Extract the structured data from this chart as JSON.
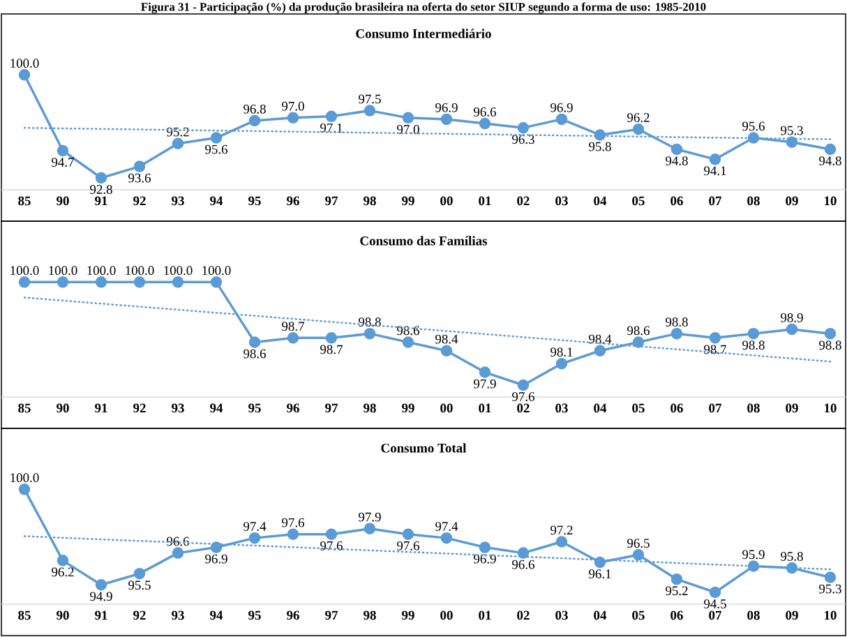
{
  "chart_data": [
    {
      "type": "line",
      "title": "Figura 31 - Participação (%) da produção brasileira na oferta do setor SIUP segundo a forma de uso: 1985-2010",
      "subtitle": "Consumo Intermediário",
      "categories": [
        "85",
        "90",
        "91",
        "92",
        "93",
        "94",
        "95",
        "96",
        "97",
        "98",
        "99",
        "00",
        "01",
        "02",
        "03",
        "04",
        "05",
        "06",
        "07",
        "08",
        "09",
        "10"
      ],
      "series": [
        {
          "color": "#5b9bd5",
          "marker": "circle",
          "line_style": "solid",
          "values": [
            100.0,
            94.7,
            92.8,
            93.6,
            95.2,
            95.6,
            96.8,
            97.0,
            97.1,
            97.5,
            97.0,
            96.9,
            96.6,
            96.3,
            96.9,
            95.8,
            96.2,
            94.8,
            94.1,
            95.6,
            95.3,
            94.8
          ],
          "value_labels": [
            "100.0",
            "94.7",
            "92.8",
            "93.6",
            "95.2",
            "95.6",
            "96.8",
            "97.0",
            "97.1",
            "97.5",
            "97.0",
            "96.9",
            "96.6",
            "96.3",
            "96.9",
            "95.8",
            "96.2",
            "94.8",
            "94.1",
            "95.6",
            "95.3",
            "94.8"
          ]
        },
        {
          "type": "line",
          "x": [
            "85",
            "10"
          ],
          "values": [
            96.3,
            95.5
          ],
          "color": "#5b9bd5",
          "line_style": "dotted",
          "marker": "none"
        }
      ]
    },
    {
      "type": "line",
      "title": "Consumo das Famílias",
      "categories": [
        "85",
        "90",
        "91",
        "92",
        "93",
        "94",
        "95",
        "96",
        "97",
        "98",
        "99",
        "00",
        "01",
        "02",
        "03",
        "04",
        "05",
        "06",
        "07",
        "08",
        "09",
        "10"
      ],
      "series": [
        {
          "color": "#5b9bd5",
          "marker": "circle",
          "line_style": "solid",
          "values": [
            100.0,
            100.0,
            100.0,
            100.0,
            100.0,
            100.0,
            98.6,
            98.7,
            98.7,
            98.8,
            98.6,
            98.4,
            97.9,
            97.6,
            98.1,
            98.4,
            98.6,
            98.8,
            98.7,
            98.8,
            98.9,
            98.8
          ],
          "value_labels": [
            "100.0",
            "100.0",
            "100.0",
            "100.0",
            "100.0",
            "100.0",
            "98.6",
            "98.7",
            "98.7",
            "98.8",
            "98.6",
            "98.4",
            "97.9",
            "97.6",
            "98.1",
            "98.4",
            "98.6",
            "98.8",
            "98.7",
            "98.8",
            "98.9",
            "98.8"
          ]
        },
        {
          "type": "line",
          "x": [
            "85",
            "10"
          ],
          "values": [
            99.64,
            98.15
          ],
          "color": "#5b9bd5",
          "line_style": "dotted",
          "marker": "none"
        }
      ]
    },
    {
      "type": "line",
      "title": "Consumo Total",
      "categories": [
        "85",
        "90",
        "91",
        "92",
        "93",
        "94",
        "95",
        "96",
        "97",
        "98",
        "99",
        "00",
        "01",
        "02",
        "03",
        "04",
        "05",
        "06",
        "07",
        "08",
        "09",
        "10"
      ],
      "series": [
        {
          "color": "#5b9bd5",
          "marker": "circle",
          "line_style": "solid",
          "values": [
            100.0,
            96.2,
            94.9,
            95.5,
            96.6,
            96.9,
            97.4,
            97.6,
            97.6,
            97.9,
            97.6,
            97.4,
            96.9,
            96.6,
            97.2,
            96.1,
            96.5,
            95.2,
            94.5,
            95.9,
            95.8,
            95.3
          ],
          "value_labels": [
            "100.0",
            "96.2",
            "94.9",
            "95.5",
            "96.6",
            "96.9",
            "97.4",
            "97.6",
            "97.6",
            "97.9",
            "97.6",
            "97.4",
            "96.9",
            "96.6",
            "97.2",
            "96.1",
            "96.5",
            "95.2",
            "94.5",
            "95.9",
            "95.8",
            "95.3"
          ]
        },
        {
          "type": "line",
          "x": [
            "85",
            "10"
          ],
          "values": [
            97.5,
            95.73
          ],
          "color": "#5b9bd5",
          "line_style": "dotted",
          "marker": "none"
        }
      ]
    }
  ]
}
